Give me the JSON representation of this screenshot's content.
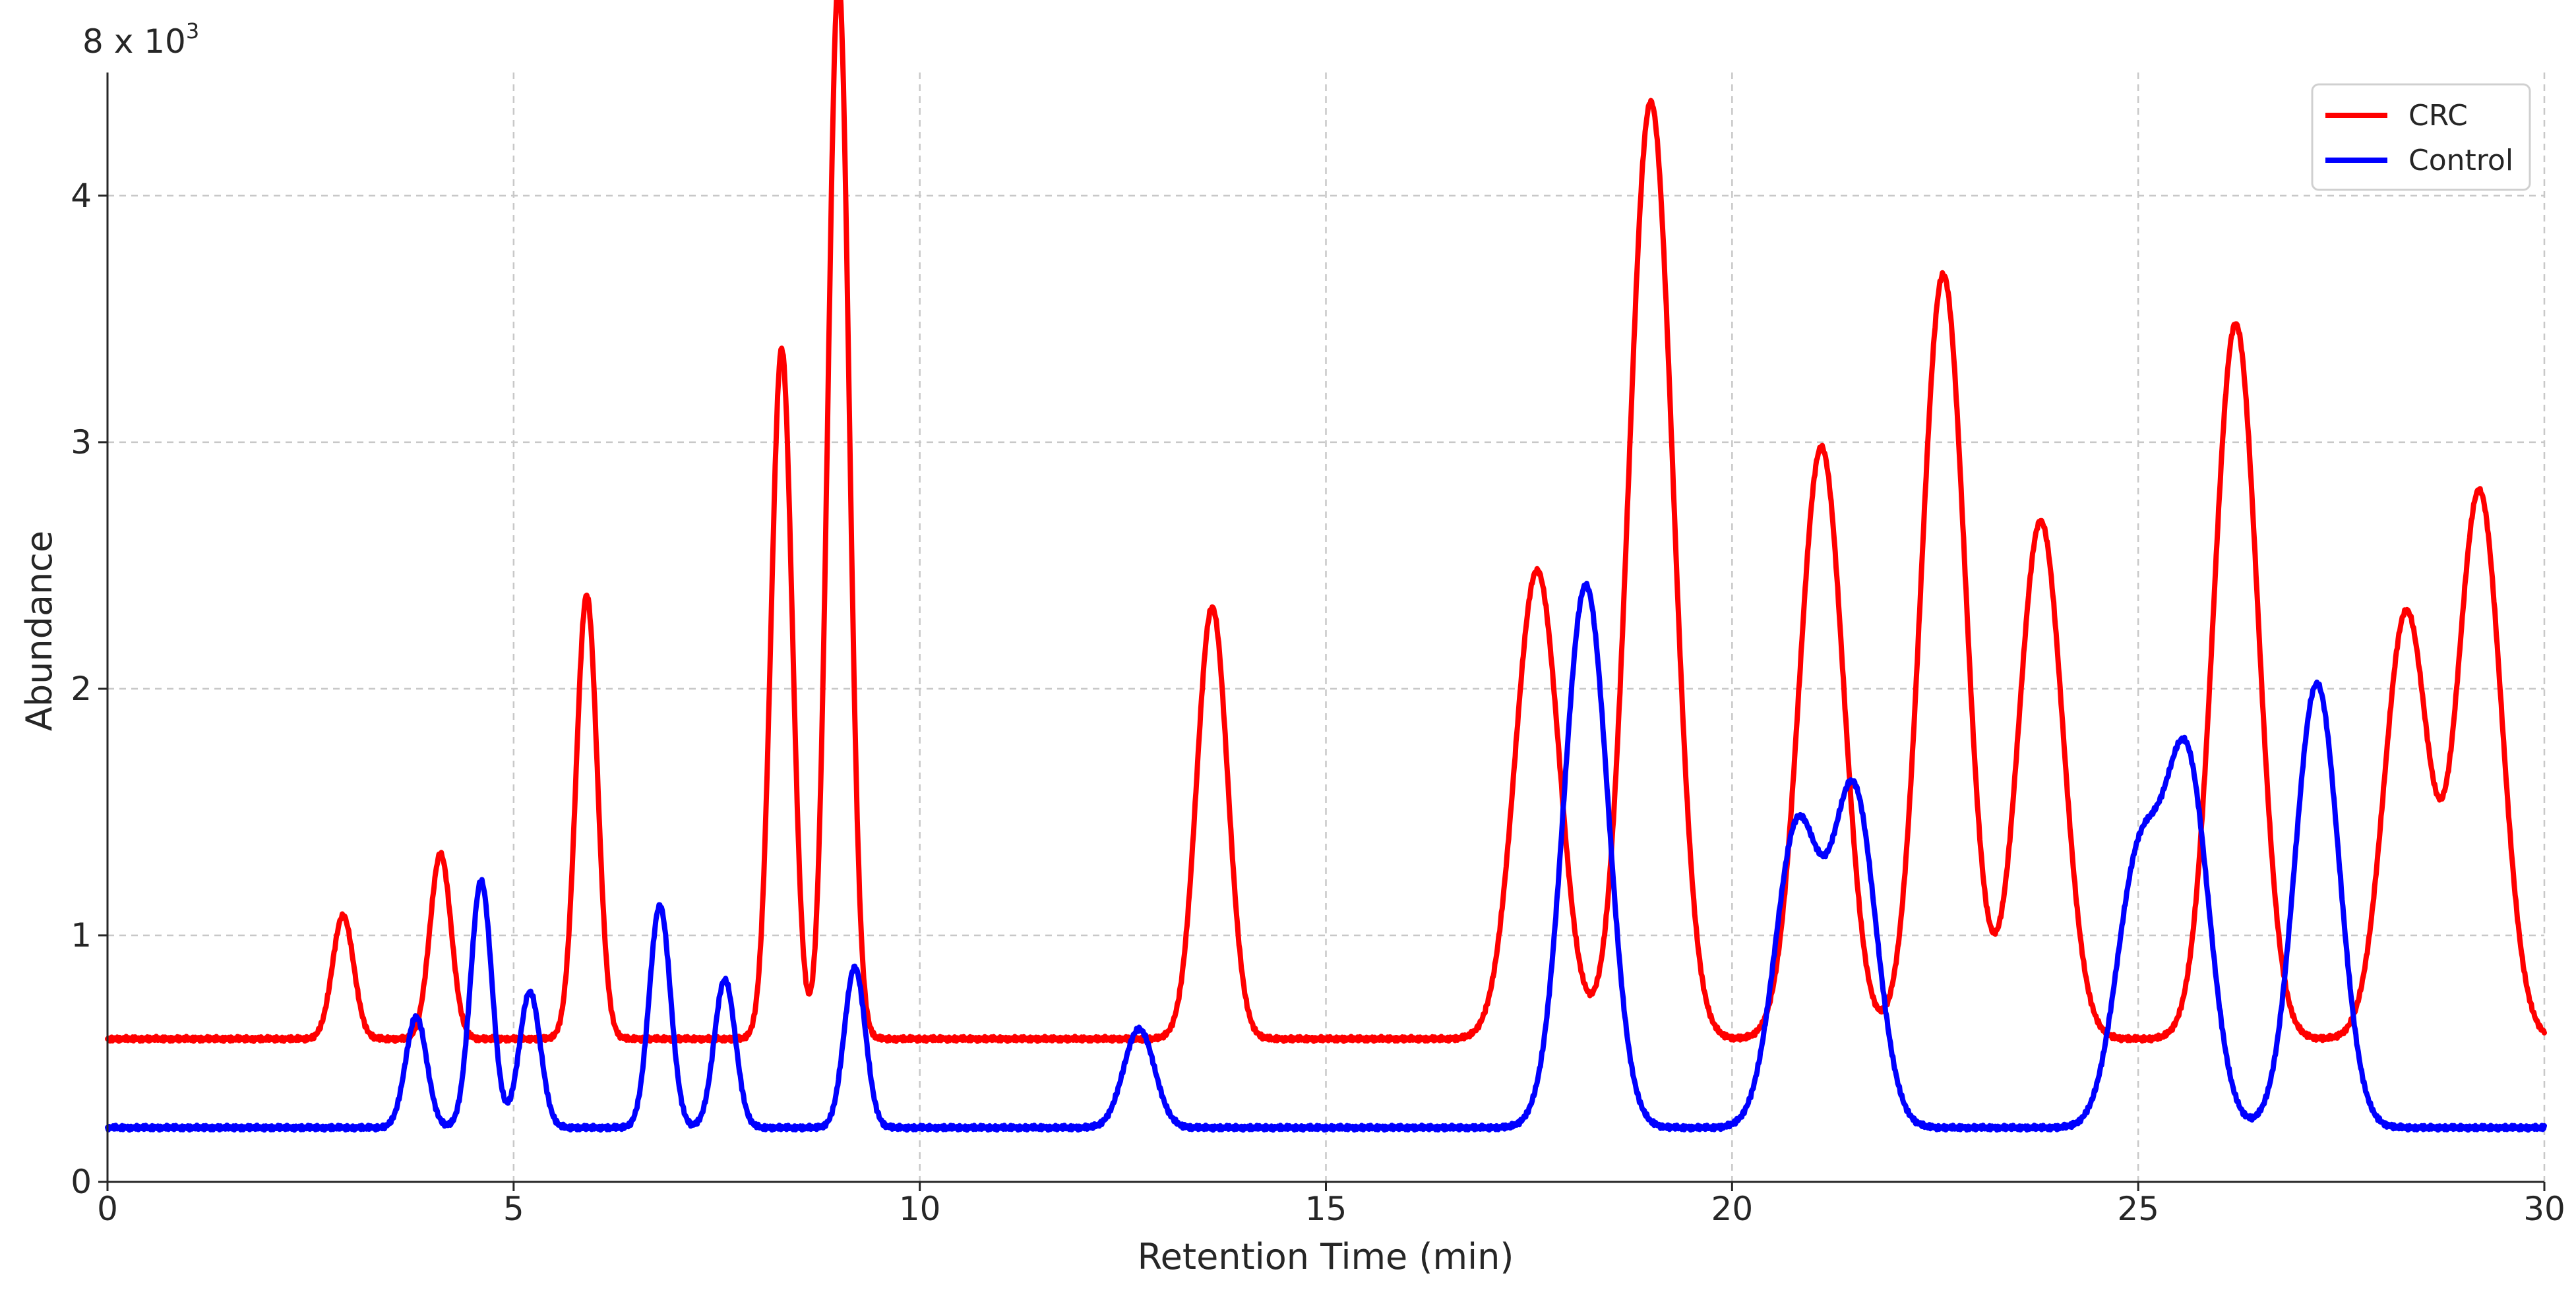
{
  "chart_data": {
    "type": "line",
    "scale_note": {
      "base": "8 x 10",
      "exponent": "3"
    },
    "xlabel": "Retention Time (min)",
    "ylabel": "Abundance",
    "xlim": [
      0,
      30
    ],
    "ylim": [
      0,
      4.7
    ],
    "xticks": [
      0,
      5,
      10,
      15,
      20,
      25,
      30
    ],
    "yticks": [
      0,
      1,
      2,
      3,
      4
    ],
    "grid": true,
    "legend_position": "top-right",
    "series": [
      {
        "name": "CRC",
        "color": "#ff0000",
        "baseline": 0.58,
        "peaks": [
          {
            "x": 2.9,
            "y": 1.08
          },
          {
            "x": 4.1,
            "y": 1.33
          },
          {
            "x": 5.9,
            "y": 2.38
          },
          {
            "x": 8.3,
            "y": 3.38
          },
          {
            "x": 9.0,
            "y": 4.88
          },
          {
            "x": 13.6,
            "y": 2.33
          },
          {
            "x": 17.6,
            "y": 2.48
          },
          {
            "x": 19.0,
            "y": 4.38
          },
          {
            "x": 21.1,
            "y": 2.98
          },
          {
            "x": 22.6,
            "y": 3.68
          },
          {
            "x": 23.8,
            "y": 2.68
          },
          {
            "x": 26.2,
            "y": 3.48
          },
          {
            "x": 28.3,
            "y": 2.31
          },
          {
            "x": 29.2,
            "y": 2.8
          }
        ]
      },
      {
        "name": "Control",
        "color": "#0000ff",
        "baseline": 0.22,
        "peaks": [
          {
            "x": 3.8,
            "y": 0.67
          },
          {
            "x": 4.6,
            "y": 1.22
          },
          {
            "x": 5.2,
            "y": 0.77
          },
          {
            "x": 6.8,
            "y": 1.12
          },
          {
            "x": 7.6,
            "y": 0.82
          },
          {
            "x": 9.2,
            "y": 0.87
          },
          {
            "x": 12.7,
            "y": 0.62
          },
          {
            "x": 18.2,
            "y": 2.42
          },
          {
            "x": 20.8,
            "y": 1.43
          },
          {
            "x": 21.5,
            "y": 1.58
          },
          {
            "x": 25.0,
            "y": 1.27
          },
          {
            "x": 25.6,
            "y": 1.69
          },
          {
            "x": 27.2,
            "y": 2.02
          }
        ]
      }
    ]
  }
}
